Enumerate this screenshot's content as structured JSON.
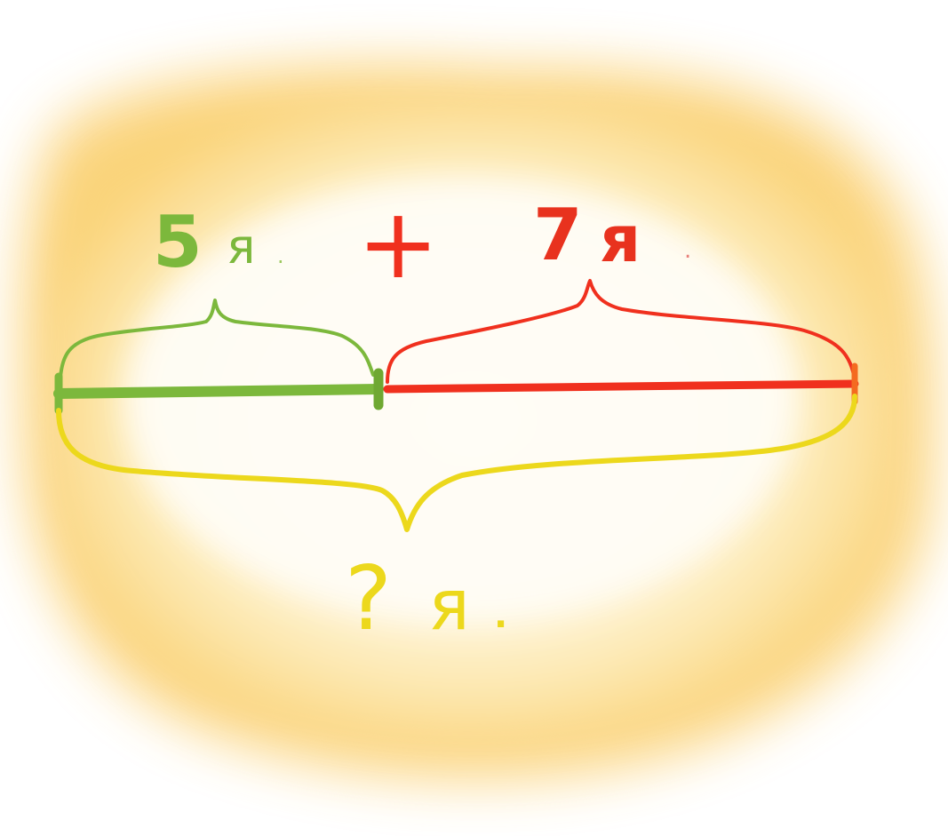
{
  "colors": {
    "left": "#7cb83c",
    "right": "#f0301e",
    "total": "#ecd81c",
    "glow_center": "#fffdf6",
    "glow_edge": "#fbd97a"
  },
  "labels": {
    "left_number": "5",
    "left_unit": "я",
    "left_dot": ".",
    "plus": "+",
    "right_number": "7",
    "right_unit": "я",
    "right_dot": ".",
    "total_number": "?",
    "total_unit": "я",
    "total_dot": "."
  },
  "segments": {
    "left_value": 5,
    "right_value": 7
  }
}
